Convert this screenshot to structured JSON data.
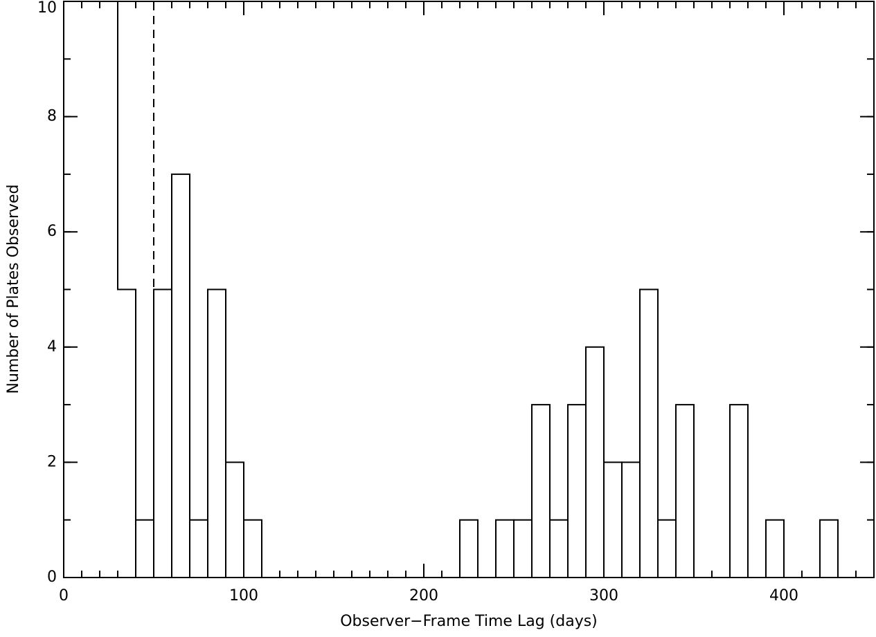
{
  "chart_data": {
    "type": "histogram",
    "xlabel": "Observer−Frame Time Lag (days)",
    "ylabel": "Number of Plates Observed",
    "bins": [
      30,
      40,
      50,
      60,
      70,
      80,
      90,
      100,
      110,
      120,
      130,
      140,
      150,
      160,
      170,
      180,
      190,
      200,
      210,
      220,
      230,
      240,
      250,
      260,
      270,
      280,
      290,
      300,
      310,
      320,
      330,
      340,
      350,
      360,
      370,
      380,
      390,
      400,
      410,
      420,
      430
    ],
    "values": [
      5,
      1,
      5,
      7,
      1,
      5,
      2,
      1,
      0,
      0,
      0,
      0,
      0,
      0,
      0,
      0,
      0,
      0,
      0,
      1,
      0,
      1,
      1,
      3,
      1,
      3,
      4,
      2,
      2,
      5,
      1,
      3,
      0,
      0,
      3,
      0,
      1,
      0,
      0,
      1
    ],
    "color": "#000000",
    "xlim": [
      0,
      450
    ],
    "xticks": [
      0,
      100,
      200,
      300,
      400
    ],
    "x_minor_step": 10,
    "ylim": [
      0,
      10
    ],
    "yticks": [
      0,
      2,
      4,
      6,
      8,
      10
    ],
    "y_minor_step": 1,
    "vline": 50
  }
}
